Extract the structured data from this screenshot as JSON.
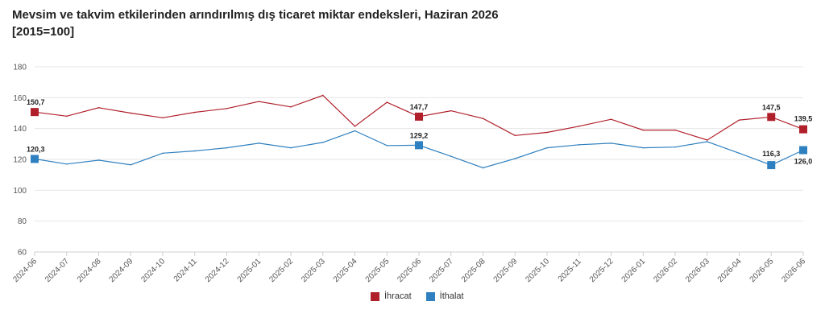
{
  "title": "Mevsim ve takvim etkilerinden arındırılmış dış ticaret miktar endeksleri, Haziran 2026",
  "subtitle": "[2015=100]",
  "chart_data": {
    "type": "line",
    "x": [
      "2024-06",
      "2024-07",
      "2024-08",
      "2024-09",
      "2024-10",
      "2024-11",
      "2024-12",
      "2025-01",
      "2025-02",
      "2025-03",
      "2025-04",
      "2025-05",
      "2025-06",
      "2025-07",
      "2025-08",
      "2025-09",
      "2025-10",
      "2025-11",
      "2025-12",
      "2026-01",
      "2026-02",
      "2026-03",
      "2026-04",
      "2026-05",
      "2026-06"
    ],
    "ylim": [
      60,
      180
    ],
    "yticks": [
      60,
      80,
      100,
      120,
      140,
      160,
      180
    ],
    "grid": "horizontal",
    "legend": "bottom-center",
    "series": [
      {
        "name": "İhracat",
        "color": "#b0202a",
        "values": [
          150.7,
          148.0,
          153.5,
          150.0,
          147.0,
          150.5,
          153.0,
          157.5,
          154.0,
          161.5,
          141.5,
          157.0,
          147.7,
          151.5,
          146.5,
          135.5,
          137.5,
          141.5,
          146.0,
          139.0,
          139.0,
          132.5,
          145.5,
          147.5,
          139.5
        ],
        "markers": [
          0,
          12,
          23,
          24
        ],
        "labels": {
          "0": "150,7",
          "12": "147,7",
          "23": "147,5",
          "24": "139,5"
        }
      },
      {
        "name": "İthalat",
        "color": "#2f80c0",
        "values": [
          120.3,
          117.0,
          119.5,
          116.5,
          124.0,
          125.5,
          127.5,
          130.5,
          127.5,
          131.0,
          138.5,
          129.0,
          129.2,
          122.0,
          114.5,
          120.5,
          127.5,
          129.5,
          130.5,
          127.5,
          128.0,
          131.5,
          124.0,
          116.3,
          126.0
        ],
        "markers": [
          0,
          12,
          23,
          24
        ],
        "labels": {
          "0": "120,3",
          "12": "129,2",
          "23": "116,3",
          "24": "126,0"
        }
      }
    ]
  }
}
